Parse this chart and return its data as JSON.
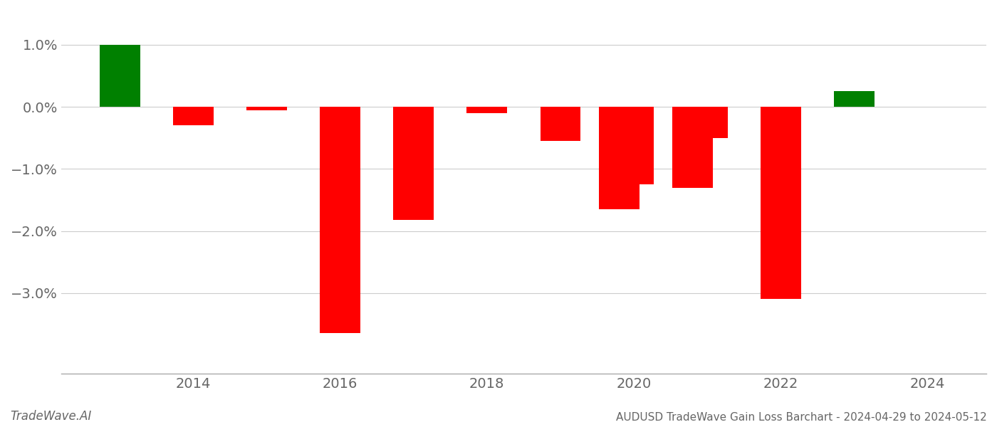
{
  "years": [
    2013,
    2014,
    2015,
    2016,
    2017,
    2018,
    2019,
    2019.8,
    2020,
    2020.8,
    2021,
    2022,
    2023
  ],
  "values": [
    1.0,
    -0.3,
    -0.05,
    -3.65,
    -1.82,
    -0.1,
    -0.55,
    -1.65,
    -1.25,
    -1.3,
    -0.5,
    -3.1,
    0.25
  ],
  "colors": [
    "#008000",
    "#ff0000",
    "#ff0000",
    "#ff0000",
    "#ff0000",
    "#ff0000",
    "#ff0000",
    "#ff0000",
    "#ff0000",
    "#ff0000",
    "#ff0000",
    "#ff0000",
    "#008000"
  ],
  "xlim": [
    2012.2,
    2024.8
  ],
  "ylim": [
    -4.3,
    1.55
  ],
  "yticks": [
    1.0,
    0.0,
    -1.0,
    -2.0,
    -3.0
  ],
  "ytick_labels": [
    "1.0%",
    "0.0%",
    "−1.0%",
    "−2.0%",
    "−3.0%"
  ],
  "xticks": [
    2014,
    2016,
    2018,
    2020,
    2022,
    2024
  ],
  "tick_fontsize": 14,
  "footer_left": "TradeWave.AI",
  "footer_right": "AUDUSD TradeWave Gain Loss Barchart - 2024-04-29 to 2024-05-12",
  "bar_width": 0.55,
  "background_color": "#ffffff",
  "grid_color": "#cccccc",
  "axis_color": "#aaaaaa",
  "text_color": "#666666"
}
